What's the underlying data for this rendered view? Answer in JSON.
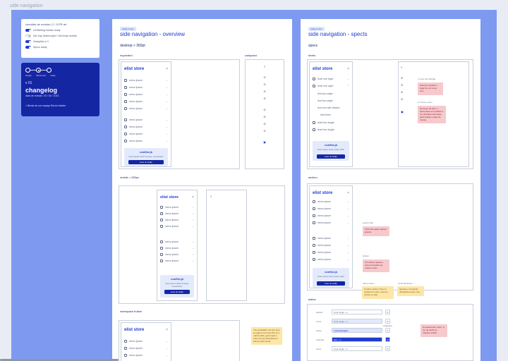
{
  "page_label": "side navigation",
  "legend": {
    "heading": "checklist de revisão | 2 / 5 PR ref",
    "rows": [
      {
        "label": "UX/Writing revisão ready",
        "on": true
      },
      {
        "label": "Dev hay desenvolper / Dev/hoje revisão",
        "on": false
      },
      {
        "label": "Variações ui ii",
        "on": true
      },
      {
        "label": "Specs ready",
        "on": true
      }
    ]
  },
  "changelog": {
    "steps": [
      "design",
      "refinement",
      "ready"
    ],
    "version": "v 01",
    "title": "changelog",
    "date": "data de revisão: 00 / 00 / 2023",
    "note": "> Breda de um espaço fila em feadm"
  },
  "overview": {
    "badge": "ready to dev",
    "title": "side navigation - overview",
    "section_desktop": "desktop > 360pt",
    "label_expanded": "expanded",
    "label_collapsed": "collapsed",
    "label_mobile": "mobile < 552px",
    "label_workspace": "workspace button",
    "nav": {
      "logo": "elist store",
      "close": "×",
      "item_label": "menu ipsum",
      "cta_title": "confira já",
      "cta_sub": "lorem ipsum dolor sit amet, consectetur",
      "cta_button": "texto do botão"
    },
    "workspace_note": "The possibilitiv into tem pem ao agena rovit preende ar a matriz plata, gesto apar e sobre de gem/duesda lem lutti de paul-cional."
  },
  "spects": {
    "badge": "ready to dev",
    "title": "side navigation  - spects",
    "section_specs": "specs",
    "label_levels": "levels",
    "label_section": "section",
    "label_states": "states",
    "nav": {
      "logo": "elist store",
      "close": "×",
      "item_label": "level one layer",
      "sub_label": "level two single",
      "third_label": "level one with children",
      "fourth_label": "level three",
      "cta_title": "confira já",
      "cta_sub": "lorem ipsum lorem ipsum dolor",
      "cta_button": "texto do botão"
    },
    "notes_levels": {
      "ann1": "o resto da exibição",
      "note1": "Sempre ocupará o lugar de um menu com",
      "ann2": "no hover o item",
      "note2": "No hover do item, o fundo deve ser pintado a cor primária mais clara, para indicar a ação do mouse."
    },
    "notes_section": {
      "ann1": "section title",
      "note1": "Título da seção separa grupos.",
      "ann2": "divider",
      "note2": "Um divisor aparece entre as seções de mesmo nível.",
      "ann3": "call to action",
      "note3": "O call to action é fixo no rodapé do menu, sempre visível em tela.",
      "ann4": "scroll behaviour",
      "note4": "Quando o conteúdo ultrapassa a tela, rola."
    },
    "states": [
      {
        "label": "default",
        "value": "level single - ic",
        "style": ""
      },
      {
        "label": "hover",
        "value": "level single - ic",
        "style": "hover"
      },
      {
        "label": "active",
        "value": "Level paragon",
        "style": "act"
      },
      {
        "label": "selected",
        "value": "item - ic",
        "style": "sel"
      },
      {
        "label": "focus",
        "value": "level single - ic",
        "style": ""
      }
    ],
    "states_ann": "collapsed",
    "states_note": "Ao selecionar o item, a cor de fundo se mantém sólida."
  }
}
